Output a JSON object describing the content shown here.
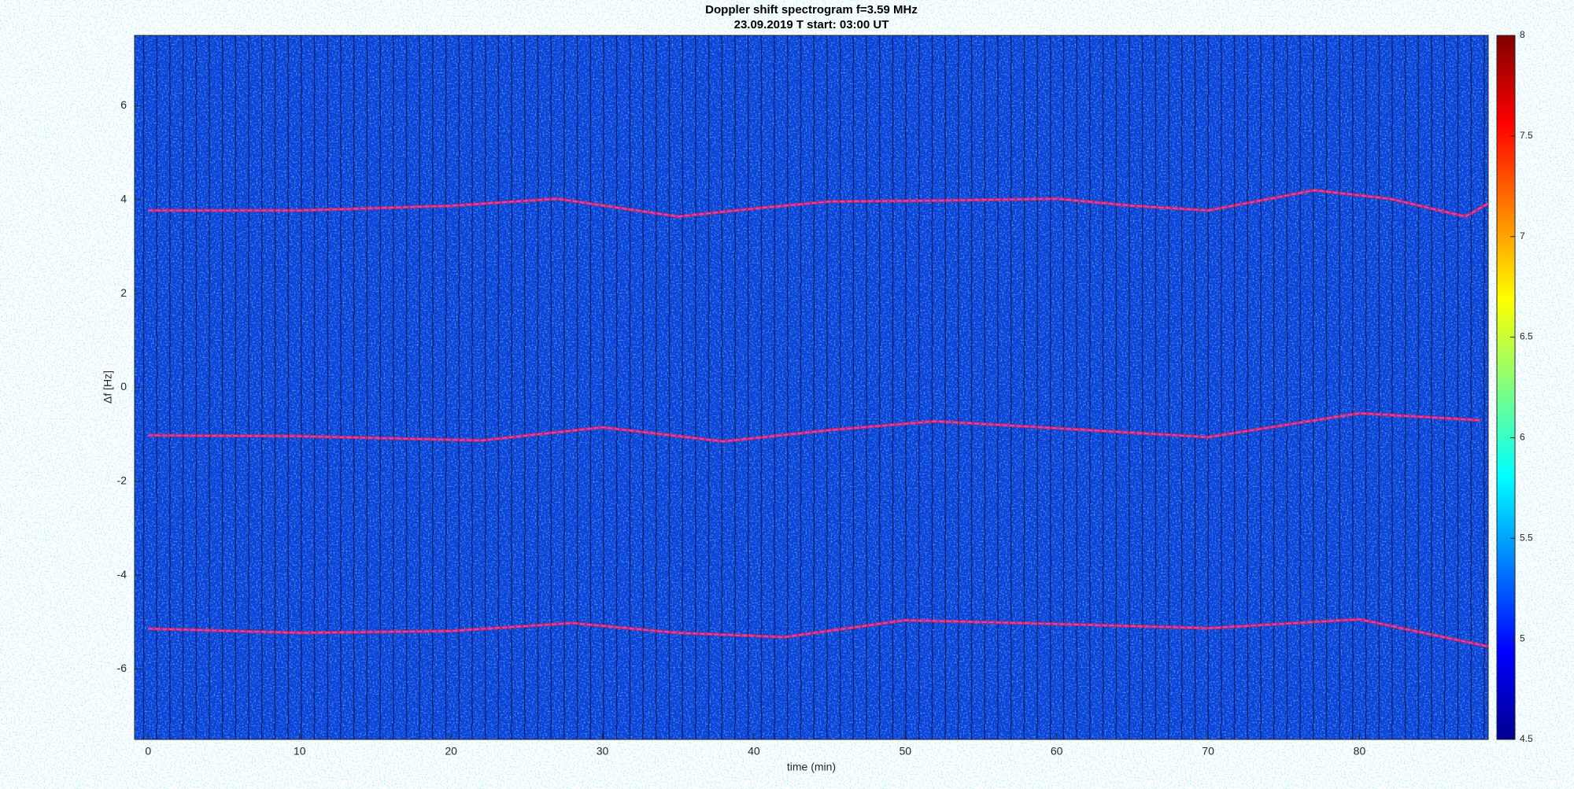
{
  "chart_data": {
    "type": "spectrogram",
    "title": "Doppler shift spectrogram f=3.59 MHz",
    "subtitle": "23.09.2019    T start: 03:00 UT",
    "x_label": "time (min)",
    "y_label": "Δf [Hz]",
    "xlim": [
      -0.9,
      88.5
    ],
    "ylim": [
      -7.5,
      7.5
    ],
    "xticks": [
      0,
      10,
      20,
      30,
      40,
      50,
      60,
      70,
      80
    ],
    "yticks": [
      -6,
      -4,
      -2,
      0,
      2,
      4,
      6
    ],
    "colormap": "jet",
    "clim": [
      4.5,
      8
    ],
    "cticks": [
      4.5,
      5,
      5.5,
      6,
      6.5,
      7,
      7.5,
      8
    ],
    "series": [
      {
        "color": "#cc44ff",
        "x": [
          0,
          10,
          20,
          27,
          35,
          40,
          45,
          52,
          60,
          65,
          70,
          77,
          82,
          87,
          88.5
        ],
        "values": [
          3.77,
          3.77,
          3.87,
          4.02,
          3.64,
          3.81,
          3.96,
          3.98,
          4.02,
          3.87,
          3.77,
          4.2,
          4.02,
          3.64,
          3.92
        ]
      },
      {
        "color": "#cc44ff",
        "x": [
          0,
          10,
          22,
          30,
          38,
          45,
          52,
          60,
          70,
          80,
          88
        ],
        "values": [
          -1.02,
          -1.04,
          -1.13,
          -0.85,
          -1.15,
          -0.91,
          -0.72,
          -0.87,
          -1.06,
          -0.55,
          -0.7
        ]
      },
      {
        "color": "#cc44ff",
        "x": [
          0,
          10,
          20,
          28,
          35,
          42,
          50,
          60,
          70,
          80,
          88.5
        ],
        "values": [
          -5.14,
          -5.23,
          -5.19,
          -5.02,
          -5.23,
          -5.32,
          -4.96,
          -5.04,
          -5.13,
          -4.94,
          -5.52
        ]
      }
    ]
  }
}
